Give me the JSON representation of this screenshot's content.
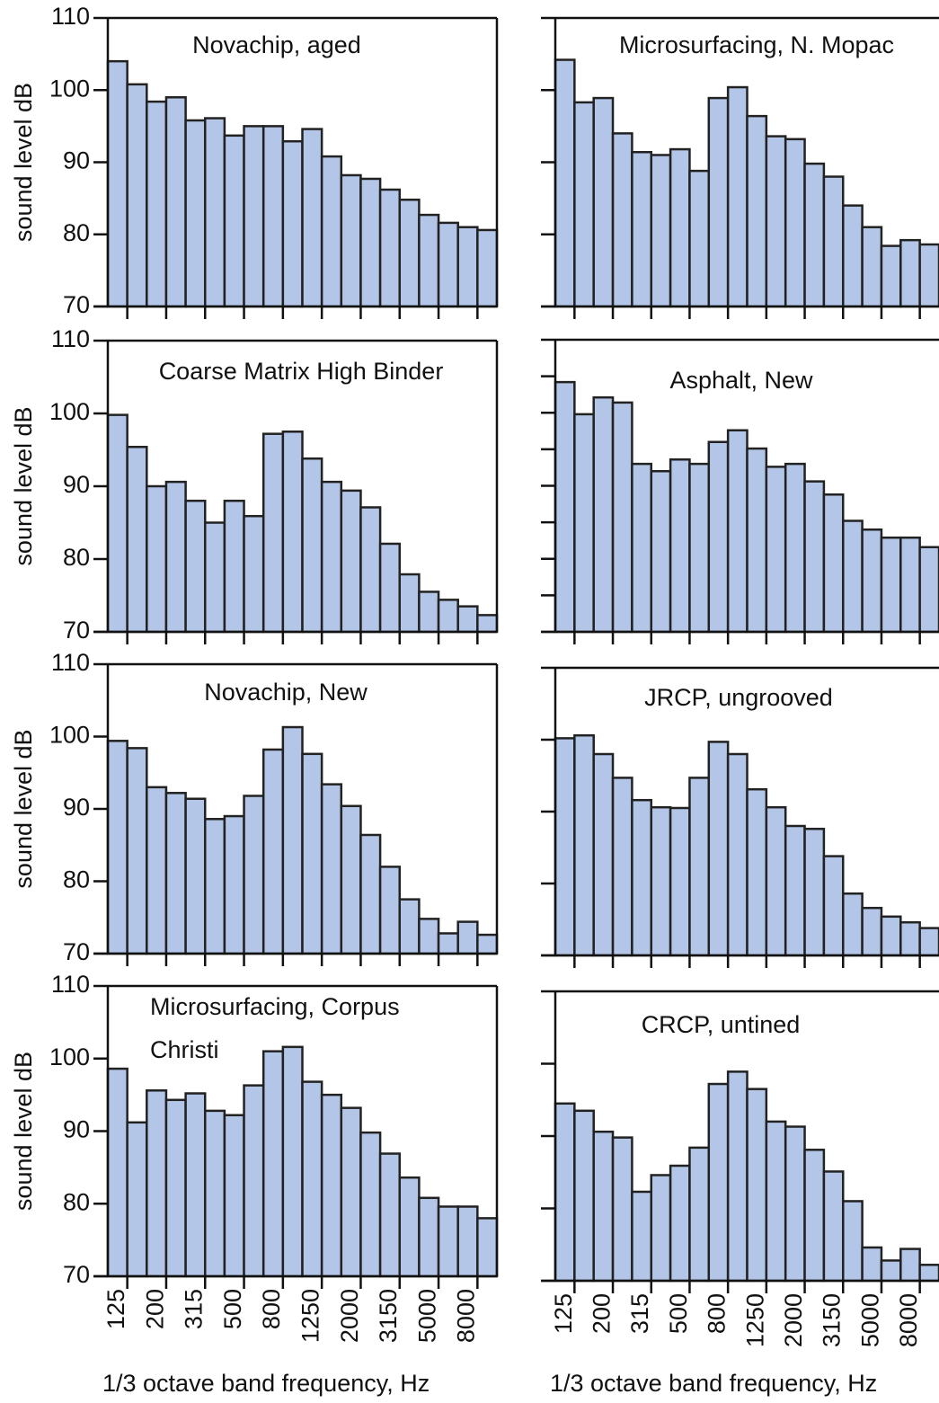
{
  "chart_data": [
    {
      "type": "bar",
      "title": "Novachip, aged",
      "ylabel": "sound level dB",
      "color": "#b3c6e7",
      "ylim": [
        70,
        110
      ],
      "yticks": [
        70,
        80,
        90,
        100,
        110
      ],
      "values": [
        104.0,
        100.8,
        98.4,
        99.0,
        95.8,
        96.1,
        93.7,
        95.0,
        95.0,
        92.9,
        94.6,
        90.8,
        88.2,
        87.7,
        86.2,
        84.8,
        82.7,
        81.6,
        81.0,
        80.6
      ]
    },
    {
      "type": "bar",
      "title": "Microsurfacing, N. Mopac",
      "color": "#b3c6e7",
      "ylim": [
        70,
        110
      ],
      "yticks": [
        70,
        80,
        90,
        100,
        110
      ],
      "ytick_labels": false,
      "values": [
        104.2,
        98.3,
        98.9,
        94.0,
        91.4,
        91.0,
        91.8,
        88.8,
        98.9,
        100.4,
        96.4,
        93.6,
        93.2,
        89.8,
        88.0,
        84.0,
        81.0,
        78.4,
        79.2,
        78.6
      ]
    },
    {
      "type": "bar",
      "title": "Coarse Matrix High Binder",
      "ylabel": "sound level dB",
      "color": "#b3c6e7",
      "ylim": [
        70,
        110
      ],
      "yticks": [
        70,
        80,
        90,
        100,
        110
      ],
      "values": [
        99.8,
        95.4,
        90.0,
        90.6,
        88.0,
        85.0,
        88.0,
        85.9,
        97.2,
        97.5,
        93.8,
        90.6,
        89.4,
        87.1,
        82.1,
        77.9,
        75.5,
        74.4,
        73.5,
        72.3
      ]
    },
    {
      "type": "bar",
      "title": "Asphalt, New",
      "color": "#b3c6e7",
      "ylim": [
        70,
        110
      ],
      "yticks": [
        70,
        75,
        80,
        85,
        90,
        95,
        100,
        105,
        110
      ],
      "ytick_labels": false,
      "values": [
        104.2,
        99.8,
        102.1,
        101.4,
        93.0,
        92.0,
        93.6,
        93.0,
        96.0,
        97.6,
        95.1,
        92.6,
        93.0,
        90.6,
        88.8,
        85.2,
        84.0,
        82.9,
        82.9,
        81.6
      ]
    },
    {
      "type": "bar",
      "title": "Novachip, New",
      "ylabel": "sound level dB",
      "color": "#b3c6e7",
      "ylim": [
        70,
        110
      ],
      "yticks": [
        70,
        80,
        90,
        100,
        110
      ],
      "values": [
        99.4,
        98.4,
        93.0,
        92.2,
        91.4,
        88.6,
        89.0,
        91.8,
        98.2,
        101.3,
        97.6,
        93.4,
        90.4,
        86.4,
        82.0,
        77.5,
        74.8,
        72.8,
        74.4,
        72.6
      ]
    },
    {
      "type": "bar",
      "title": "JRCP, ungrooved",
      "color": "#b3c6e7",
      "ylim": [
        70,
        110
      ],
      "yticks": [
        70,
        80,
        90,
        100,
        110
      ],
      "ytick_labels": false,
      "values": [
        100.2,
        100.6,
        98.0,
        94.7,
        91.6,
        90.6,
        90.5,
        94.7,
        99.7,
        98.0,
        93.1,
        90.6,
        88.0,
        87.6,
        83.8,
        78.6,
        76.6,
        75.4,
        74.6,
        73.8
      ]
    },
    {
      "type": "bar",
      "title": [
        "Microsurfacing, Corpus",
        "Christi"
      ],
      "ylabel": "sound level dB",
      "xlabel": "1/3 octave band frequency,  Hz",
      "color": "#b3c6e7",
      "ylim": [
        70,
        110
      ],
      "yticks": [
        70,
        80,
        90,
        100,
        110
      ],
      "categories": [
        "125",
        null,
        "200",
        null,
        "315",
        null,
        "500",
        null,
        "800",
        null,
        "1250",
        null,
        "2000",
        null,
        "3150",
        null,
        "5000",
        null,
        "8000",
        null
      ],
      "values": [
        98.6,
        91.2,
        95.6,
        94.3,
        95.2,
        92.8,
        92.2,
        96.3,
        101.0,
        101.6,
        96.8,
        95.0,
        93.2,
        89.8,
        86.9,
        83.6,
        80.8,
        79.6,
        79.6,
        78.0
      ]
    },
    {
      "type": "bar",
      "title": "CRCP, untined",
      "xlabel": "1/3 octave band frequency,  Hz",
      "color": "#b3c6e7",
      "ylim": [
        70,
        110
      ],
      "yticks": [
        70,
        80,
        90,
        100,
        110
      ],
      "ytick_labels": false,
      "categories": [
        "125",
        null,
        "200",
        null,
        "315",
        null,
        "500",
        null,
        "800",
        null,
        "1250",
        null,
        "2000",
        null,
        "3150",
        null,
        "5000",
        null,
        "8000",
        null
      ],
      "values": [
        94.5,
        93.5,
        90.6,
        89.8,
        82.3,
        84.6,
        85.9,
        88.4,
        97.2,
        98.9,
        96.5,
        92.0,
        91.3,
        88.1,
        85.1,
        81.0,
        74.6,
        72.8,
        74.4,
        72.2
      ]
    }
  ]
}
